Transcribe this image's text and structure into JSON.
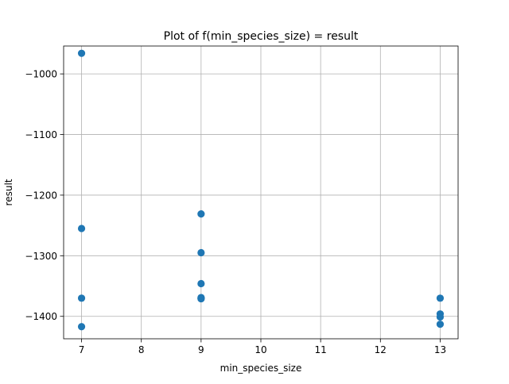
{
  "chart_data": {
    "type": "scatter",
    "title": "Plot of f(min_species_size) = result",
    "xlabel": "min_species_size",
    "ylabel": "result",
    "xlim": [
      6.7,
      13.3
    ],
    "ylim": [
      -1437,
      -954
    ],
    "xticks": [
      7,
      8,
      9,
      10,
      11,
      12,
      13
    ],
    "xtick_labels": [
      "7",
      "8",
      "9",
      "10",
      "11",
      "12",
      "13"
    ],
    "yticks": [
      -1400,
      -1300,
      -1200,
      -1100,
      -1000
    ],
    "ytick_labels": [
      "−1400",
      "−1300",
      "−1200",
      "−1100",
      "−1000"
    ],
    "grid": true,
    "legend": false,
    "series": [
      {
        "color": "#1f77b4",
        "x": [
          7,
          7,
          7,
          7,
          9,
          9,
          9,
          9,
          9,
          9,
          13,
          13,
          13,
          13
        ],
        "y": [
          -966,
          -1255,
          -1370,
          -1417,
          -1231,
          -1295,
          -1346,
          -1369,
          -1370,
          -1371,
          -1370,
          -1396,
          -1401,
          -1413
        ]
      }
    ]
  }
}
